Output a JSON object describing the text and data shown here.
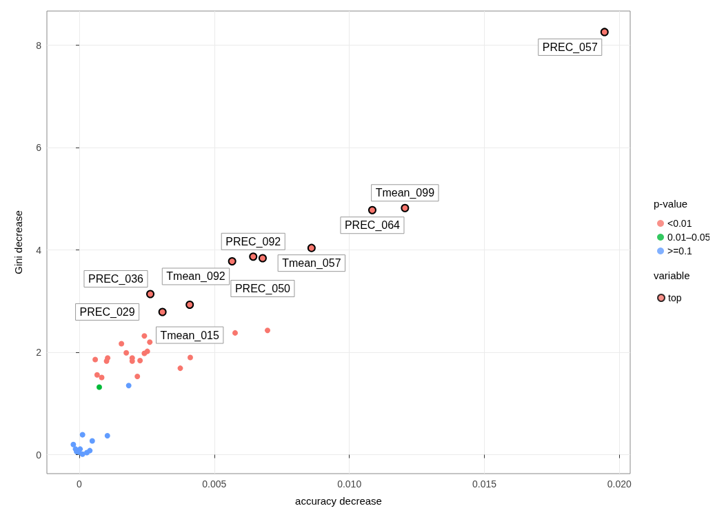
{
  "chart_data": {
    "type": "scatter",
    "xlabel": "accuracy decrease",
    "ylabel": "Gini decrease",
    "legend_title": "p-value",
    "annotations": [
      "variable",
      {
        "text": "PREC_057",
        "x": 0.01945,
        "y": 8.26
      },
      {
        "text": "Tmean_099",
        "x": 0.01206,
        "y": 4.82
      },
      {
        "text": "PREC_064",
        "x": 0.01085,
        "y": 4.78
      },
      {
        "text": "Tmean_057",
        "x": 0.0086,
        "y": 4.04
      },
      {
        "text": "PREC_050",
        "x": 0.00679,
        "y": 3.84
      },
      {
        "text": "PREC_092",
        "x": 0.00644,
        "y": 3.87
      },
      {
        "text": "Tmean_092",
        "x": 0.00566,
        "y": 3.78
      },
      {
        "text": "PREC_036",
        "x": 0.00263,
        "y": 3.14
      },
      {
        "text": "Tmean_015",
        "x": 0.00409,
        "y": 2.93
      },
      {
        "text": "PREC_029",
        "x": 0.00308,
        "y": 2.79
      }
    ],
    "xlim": [
      -0.0012,
      0.0204
    ],
    "ylim": [
      -0.37,
      8.67
    ],
    "xticks": [
      {
        "value": 0,
        "label": "0"
      },
      0.005,
      {
        "value": 0.01,
        "label": "0.010"
      },
      0.015,
      {
        "value": 0.02,
        "label": "0.020"
      }
    ],
    "yticks": [
      0,
      2,
      4,
      6,
      8
    ],
    "grid": true,
    "legend": "right",
    "marker": "circle",
    "series": [
      {
        "name": "<0.01",
        "color": "#f8766d",
        "x": [
          0.00241,
          0.00261,
          0.00156,
          0.00174,
          0.00241,
          0.00252,
          0.00059,
          0.00105,
          0.00101,
          0.00196,
          0.00196,
          0.00225,
          0.00066,
          0.00083,
          0.00215,
          0.00374,
          0.00411,
          0.00577,
          0.00697
        ],
        "values": [
          2.32,
          2.2,
          2.17,
          1.99,
          1.98,
          2.02,
          1.86,
          1.89,
          1.83,
          1.89,
          1.83,
          1.84,
          1.56,
          1.51,
          1.53,
          1.69,
          1.9,
          2.38,
          2.43
        ]
      },
      {
        "name": "0.01–0.05",
        "color": "#00ba38",
        "x": [
          0.00074
        ],
        "values": [
          1.32
        ]
      },
      {
        "name": ">=0.1",
        "color": "#619cff",
        "x": [
          0.00183,
          0.00012,
          0.00104,
          0.00048,
          -0.00022,
          -0.00014,
          3e-05,
          -0.0001,
          0.00012,
          0.00028,
          0.00039,
          -1e-05
        ],
        "values": [
          1.35,
          0.39,
          0.37,
          0.27,
          0.2,
          0.11,
          0.11,
          0.06,
          0.01,
          0.04,
          0.08,
          0.05
        ]
      },
      {
        "name": "top",
        "color": "#f8766d",
        "x": [
          0.01945,
          0.01206,
          0.01085,
          0.0086,
          0.00679,
          0.00644,
          0.00566,
          0.00263,
          0.00409,
          0.00308
        ],
        "values": [
          8.26,
          4.82,
          4.78,
          4.04,
          3.84,
          3.87,
          3.78,
          3.14,
          2.93,
          2.79
        ]
      }
    ]
  }
}
